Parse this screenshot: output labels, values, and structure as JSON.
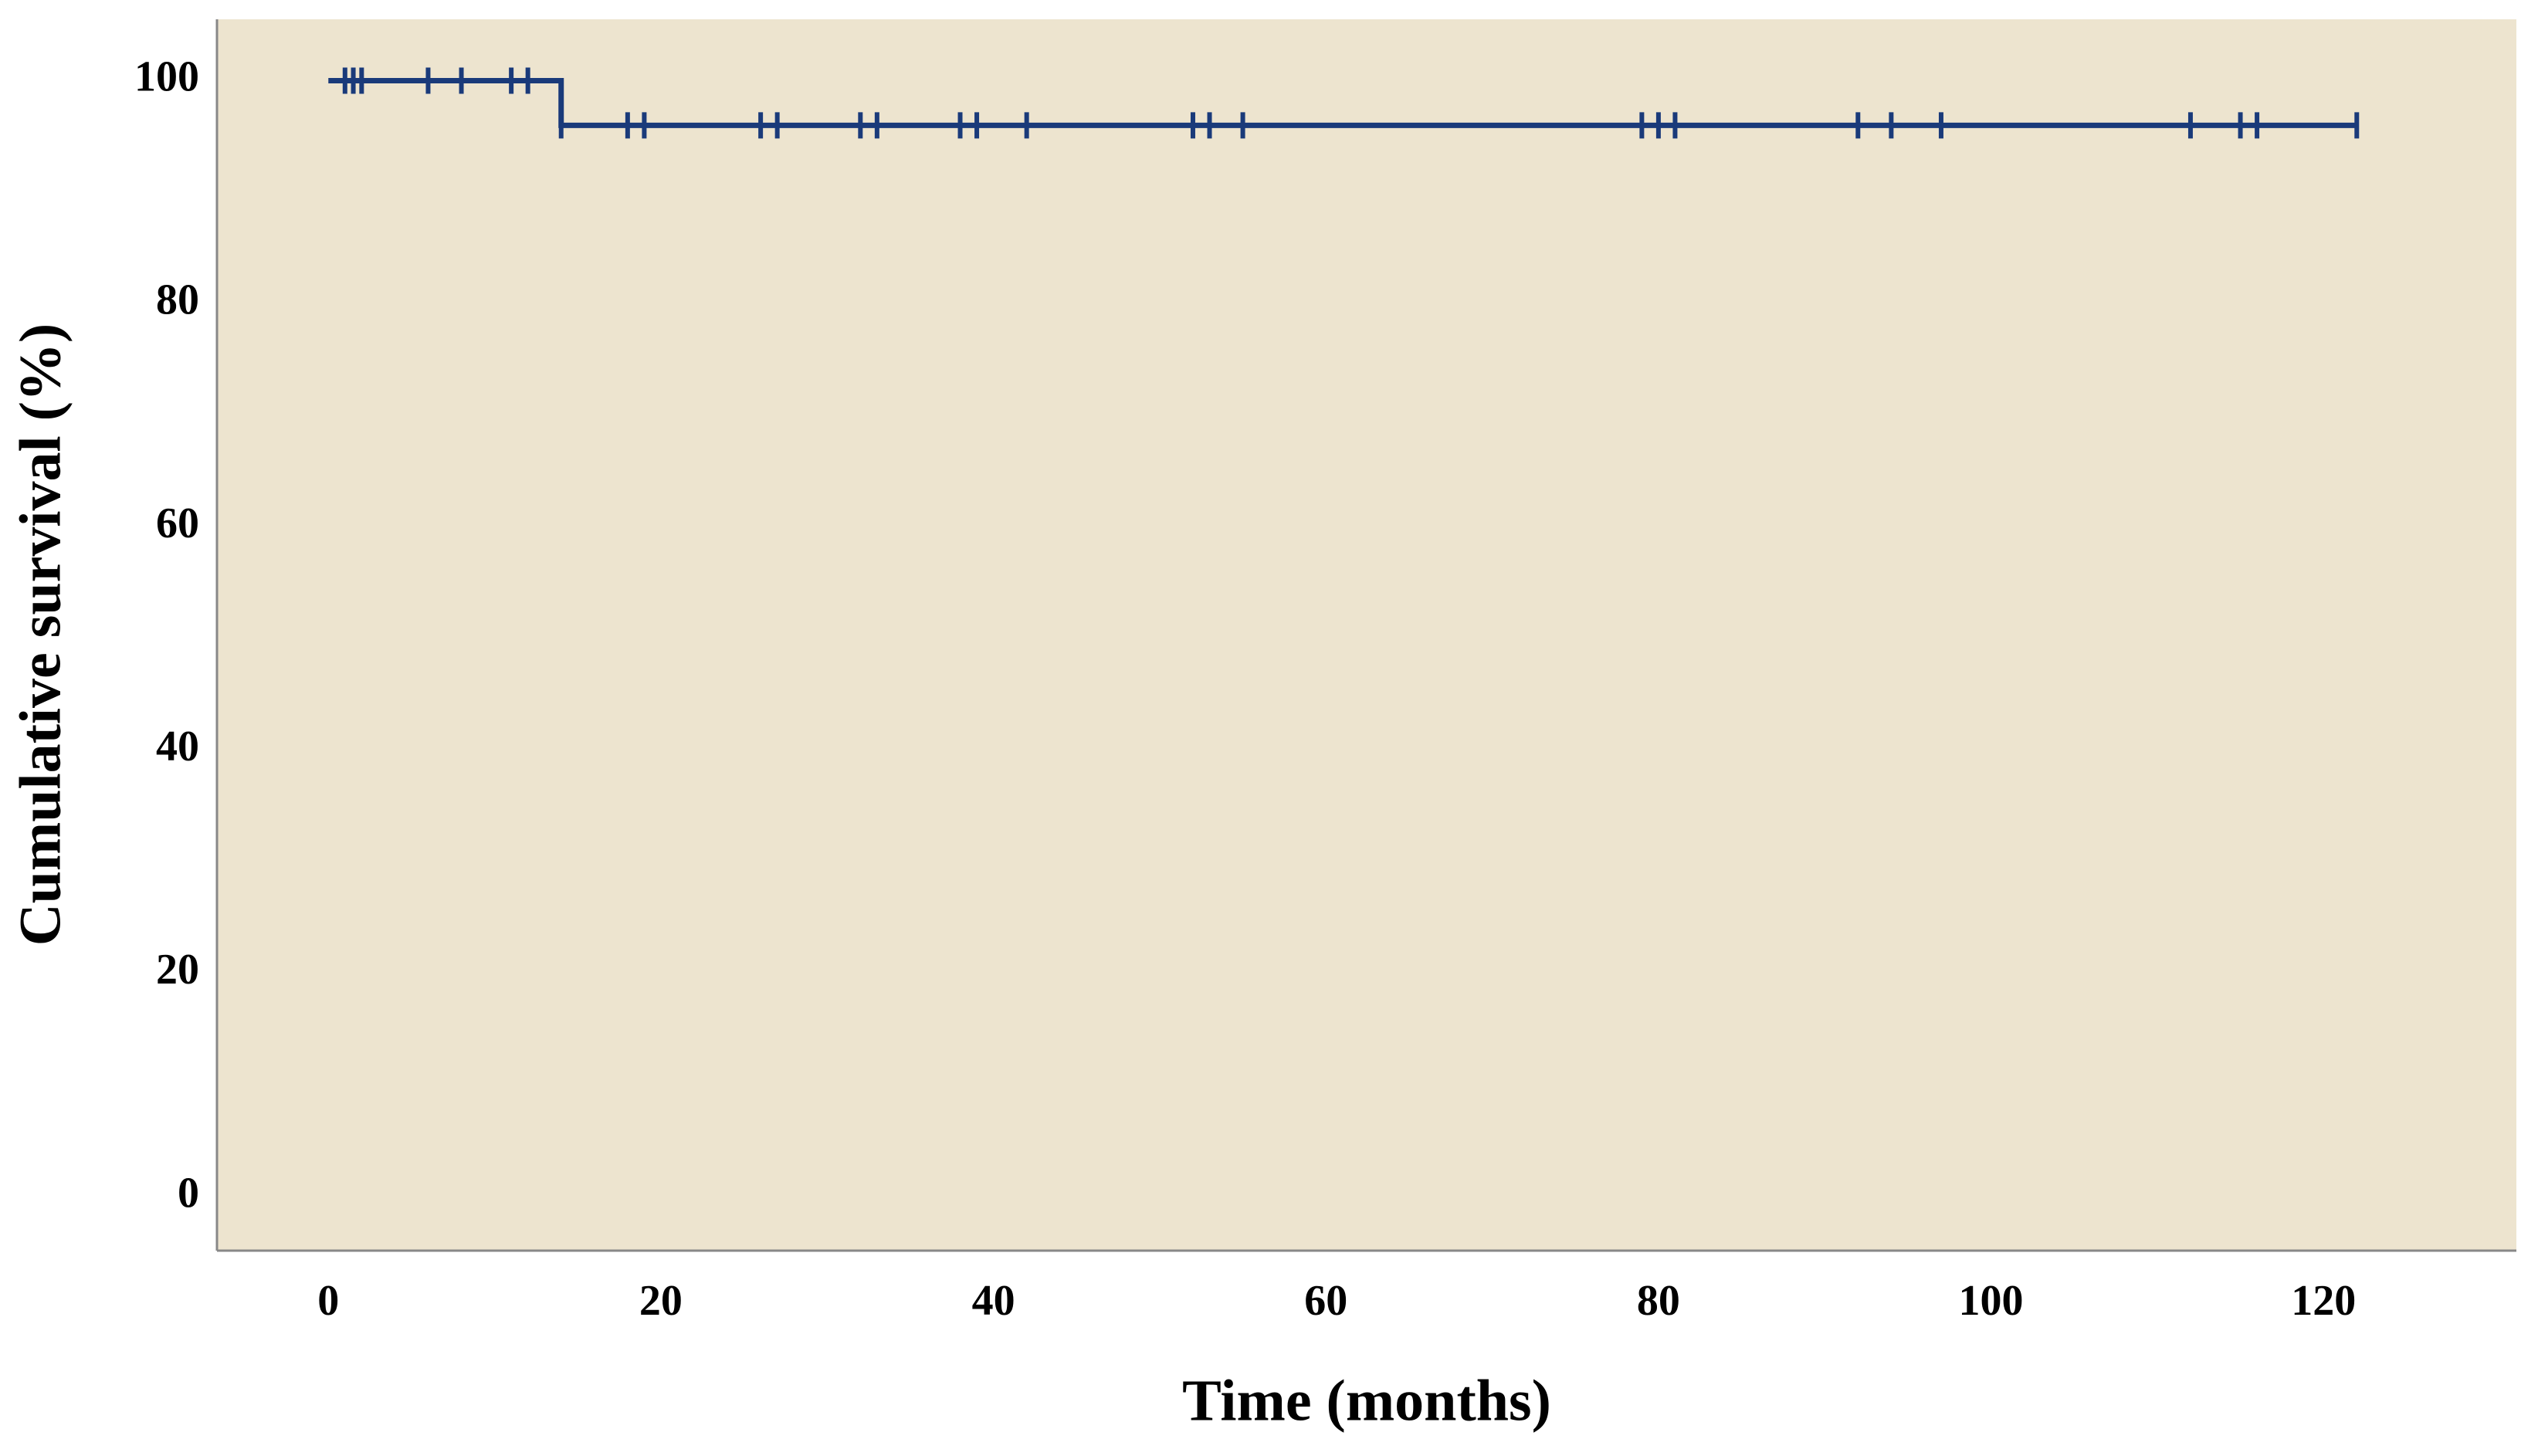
{
  "chart_data": {
    "type": "step",
    "xlabel": "Time (months)",
    "ylabel": "Cumulative survival (%)",
    "series": [
      {
        "color": "#1a3a7a",
        "x": [
          0,
          14,
          122
        ],
        "values": [
          100,
          96,
          96
        ]
      }
    ],
    "censored": {
      "color": "#1a3a7a",
      "x": [
        1,
        1.5,
        2,
        6,
        8,
        11,
        12,
        14,
        18,
        19,
        26,
        27,
        32,
        33,
        38,
        39,
        42,
        52,
        53,
        55,
        79,
        80,
        81,
        92,
        94,
        97,
        112,
        115,
        116,
        122
      ],
      "values": [
        100,
        100,
        100,
        100,
        100,
        100,
        100,
        96,
        96,
        96,
        96,
        96,
        96,
        96,
        96,
        96,
        96,
        96,
        96,
        96,
        96,
        96,
        96,
        96,
        96,
        96,
        96,
        96,
        96,
        96
      ]
    },
    "xlim": [
      -6.7,
      131.6
    ],
    "ylim": [
      -4.8,
      105.5
    ],
    "xticks": [
      0,
      20,
      40,
      60,
      80,
      100,
      120
    ],
    "yticks": [
      0,
      20,
      40,
      60,
      80,
      100
    ],
    "background": "#ede4cf",
    "grid": false
  }
}
